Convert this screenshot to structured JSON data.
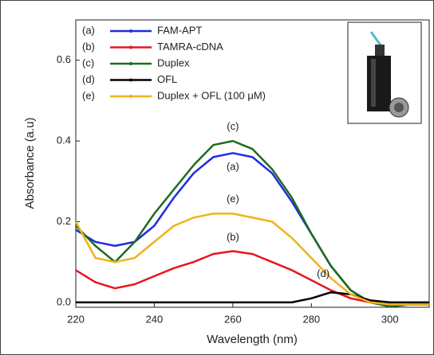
{
  "chart_data": {
    "type": "line",
    "xlabel": "Wavelength (nm)",
    "ylabel": "Absorbance (a.u)",
    "x": [
      220,
      225,
      230,
      235,
      240,
      245,
      250,
      255,
      260,
      265,
      270,
      275,
      280,
      285,
      290,
      295,
      300,
      305,
      310
    ],
    "series": [
      {
        "name": "FAM-APT",
        "tag": "(a)",
        "color": "#1f2de0",
        "values": [
          0.18,
          0.15,
          0.14,
          0.15,
          0.19,
          0.26,
          0.32,
          0.36,
          0.37,
          0.36,
          0.32,
          0.25,
          0.17,
          0.09,
          0.03,
          0.0,
          -0.01,
          -0.005,
          -0.005
        ]
      },
      {
        "name": "TAMRA-cDNA",
        "tag": "(b)",
        "color": "#e8151b",
        "values": [
          0.08,
          0.05,
          0.035,
          0.045,
          0.065,
          0.085,
          0.1,
          0.12,
          0.127,
          0.12,
          0.1,
          0.08,
          0.055,
          0.03,
          0.01,
          0.0,
          -0.005,
          -0.005,
          -0.005
        ]
      },
      {
        "name": "Duplex",
        "tag": "(c)",
        "color": "#1e6b1e",
        "values": [
          0.19,
          0.14,
          0.1,
          0.15,
          0.22,
          0.28,
          0.34,
          0.39,
          0.4,
          0.38,
          0.33,
          0.26,
          0.17,
          0.09,
          0.03,
          0.0,
          -0.01,
          -0.005,
          -0.005
        ]
      },
      {
        "name": "OFL",
        "tag": "(d)",
        "color": "#000000",
        "values": [
          0,
          0,
          0,
          0,
          0,
          0,
          0,
          0,
          0,
          0,
          0,
          0,
          0.01,
          0.025,
          0.02,
          0.005,
          0,
          0,
          0
        ]
      },
      {
        "name": "Duplex + OFL (100 μM)",
        "tag": "(e)",
        "color": "#f0b31a",
        "values": [
          0.2,
          0.11,
          0.1,
          0.11,
          0.15,
          0.19,
          0.21,
          0.22,
          0.22,
          0.21,
          0.2,
          0.16,
          0.11,
          0.06,
          0.02,
          0.0,
          -0.005,
          -0.005,
          -0.005
        ]
      }
    ],
    "annotations": [
      {
        "text": "(c)",
        "x": 260,
        "y": 0.435,
        "color": "#1e6b1e"
      },
      {
        "text": "(a)",
        "x": 260,
        "y": 0.335,
        "color": "#1f2de0"
      },
      {
        "text": "(e)",
        "x": 260,
        "y": 0.255,
        "color": "#f0b31a"
      },
      {
        "text": "(b)",
        "x": 260,
        "y": 0.16,
        "color": "#e8151b"
      },
      {
        "text": "(d)",
        "x": 283,
        "y": 0.07,
        "color": "#000000"
      }
    ],
    "xlim": [
      220,
      310
    ],
    "xticks": [
      220,
      240,
      260,
      280,
      300
    ],
    "ylim": [
      -0.012,
      0.7
    ],
    "yticks": [
      {
        "value": 0,
        "label": "0.0"
      },
      0.2,
      0.4,
      0.6
    ]
  }
}
